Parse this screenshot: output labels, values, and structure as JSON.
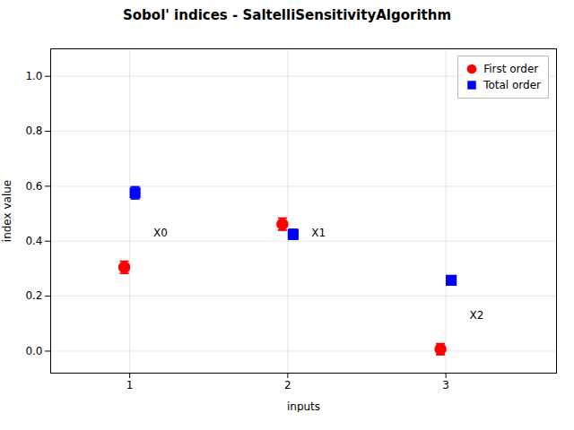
{
  "chart_data": {
    "type": "scatter",
    "title": "Sobol' indices - SaltelliSensitivityAlgorithm",
    "xlabel": "inputs",
    "ylabel": "index value",
    "x": [
      1,
      2,
      3
    ],
    "series": [
      {
        "name": "First order",
        "color": "#ff0000",
        "marker": "circle",
        "values": [
          0.305,
          0.462,
          0.007
        ],
        "yerr": [
          0.022,
          0.022,
          0.02
        ]
      },
      {
        "name": "Total order",
        "color": "#0000ff",
        "marker": "square",
        "values": [
          0.576,
          0.425,
          0.258
        ],
        "yerr": [
          0.022,
          0.018,
          0.016
        ]
      }
    ],
    "annotations": [
      {
        "text": "X0",
        "x": 1.15,
        "y": 0.43
      },
      {
        "text": "X1",
        "x": 2.15,
        "y": 0.43
      },
      {
        "text": "X2",
        "x": 3.15,
        "y": 0.13
      }
    ],
    "xlim": [
      0.5,
      3.7
    ],
    "xticks": [
      1,
      2,
      3
    ],
    "ylim": [
      -0.08,
      1.1
    ],
    "yticks": [
      {
        "value": 0.0,
        "label": "0.0"
      },
      0.2,
      0.4,
      0.6,
      0.8,
      {
        "value": 1.0,
        "label": "1.0"
      }
    ],
    "grid": true,
    "legend": "upper right"
  }
}
